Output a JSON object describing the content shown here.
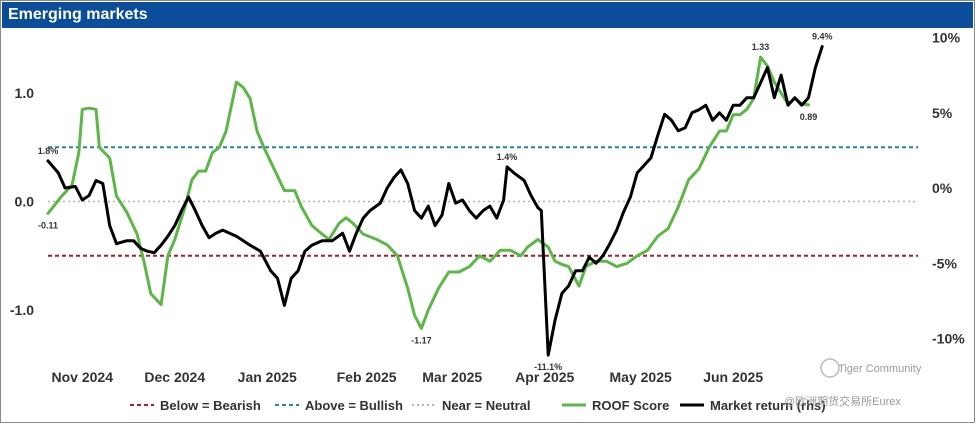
{
  "header": {
    "title": "Emerging markets"
  },
  "colors": {
    "header_bg": "#0b4d9b",
    "roof": "#5cb747",
    "market": "#000000",
    "bearish": "#b0192d",
    "bullish": "#1f7fc4",
    "neutral": "#b5b5b5"
  },
  "watermark": {
    "line1": "Tiger Community",
    "line2": "@欧洲期货交易所Eurex"
  },
  "chart_data": {
    "type": "line",
    "title": "Emerging markets",
    "left_axis": {
      "ylim": [
        -1.4,
        1.5
      ],
      "ticks": [
        1.0,
        0.0,
        -1.0
      ],
      "tick_labels": [
        "1.0",
        "0.0",
        "-1.0"
      ]
    },
    "right_axis": {
      "ylim": [
        -14.2,
        12.5
      ],
      "ticks": [
        10,
        5,
        0,
        -5,
        -10
      ],
      "tick_labels": [
        "10%",
        "5%",
        "0%",
        "-5%",
        "-10%"
      ]
    },
    "x_range": [
      0,
      256
    ],
    "x_ticks": [
      {
        "label": "Nov 2024",
        "x": 10
      },
      {
        "label": "Dec 2024",
        "x": 37
      },
      {
        "label": "Jan 2025",
        "x": 64
      },
      {
        "label": "Feb 2025",
        "x": 93
      },
      {
        "label": "Mar 2025",
        "x": 118
      },
      {
        "label": "Apr 2025",
        "x": 145
      },
      {
        "label": "May 2025",
        "x": 173
      },
      {
        "label": "Jun 2025",
        "x": 200
      }
    ],
    "reference_lines": [
      {
        "name": "Below = Bearish",
        "value": -0.5
      },
      {
        "name": "Above = Bullish",
        "value": 0.5
      },
      {
        "name": "Near = Neutral",
        "value": 0.0
      }
    ],
    "series": [
      {
        "name": "ROOF Score",
        "axis": "left",
        "points": [
          [
            0,
            -0.11
          ],
          [
            4,
            0.05
          ],
          [
            7,
            0.15
          ],
          [
            9,
            0.45
          ],
          [
            10,
            0.85
          ],
          [
            12,
            0.86
          ],
          [
            14,
            0.85
          ],
          [
            15,
            0.5
          ],
          [
            18,
            0.4
          ],
          [
            20,
            0.05
          ],
          [
            23,
            -0.1
          ],
          [
            26,
            -0.3
          ],
          [
            28,
            -0.55
          ],
          [
            30,
            -0.85
          ],
          [
            33,
            -0.95
          ],
          [
            35,
            -0.5
          ],
          [
            37,
            -0.35
          ],
          [
            40,
            -0.05
          ],
          [
            42,
            0.2
          ],
          [
            44,
            0.28
          ],
          [
            46,
            0.28
          ],
          [
            48,
            0.45
          ],
          [
            50,
            0.5
          ],
          [
            52,
            0.65
          ],
          [
            55,
            1.1
          ],
          [
            57,
            1.05
          ],
          [
            59,
            0.95
          ],
          [
            61,
            0.65
          ],
          [
            63,
            0.5
          ],
          [
            66,
            0.3
          ],
          [
            69,
            0.1
          ],
          [
            72,
            0.1
          ],
          [
            74,
            -0.05
          ],
          [
            77,
            -0.22
          ],
          [
            80,
            -0.3
          ],
          [
            82,
            -0.35
          ],
          [
            85,
            -0.2
          ],
          [
            87,
            -0.15
          ],
          [
            89,
            -0.2
          ],
          [
            92,
            -0.3
          ],
          [
            96,
            -0.35
          ],
          [
            99,
            -0.4
          ],
          [
            102,
            -0.5
          ],
          [
            105,
            -0.8
          ],
          [
            107,
            -1.05
          ],
          [
            109,
            -1.17
          ],
          [
            111,
            -1.0
          ],
          [
            114,
            -0.8
          ],
          [
            117,
            -0.65
          ],
          [
            120,
            -0.65
          ],
          [
            123,
            -0.6
          ],
          [
            126,
            -0.5
          ],
          [
            129,
            -0.55
          ],
          [
            132,
            -0.45
          ],
          [
            135,
            -0.45
          ],
          [
            138,
            -0.5
          ],
          [
            140,
            -0.42
          ],
          [
            143,
            -0.35
          ],
          [
            146,
            -0.42
          ],
          [
            148,
            -0.55
          ],
          [
            150,
            -0.58
          ],
          [
            152,
            -0.6
          ],
          [
            155,
            -0.78
          ],
          [
            157,
            -0.6
          ],
          [
            160,
            -0.55
          ],
          [
            163,
            -0.55
          ],
          [
            166,
            -0.6
          ],
          [
            169,
            -0.57
          ],
          [
            172,
            -0.5
          ],
          [
            175,
            -0.45
          ],
          [
            178,
            -0.32
          ],
          [
            181,
            -0.25
          ],
          [
            184,
            -0.05
          ],
          [
            187,
            0.2
          ],
          [
            190,
            0.3
          ],
          [
            193,
            0.5
          ],
          [
            196,
            0.65
          ],
          [
            198,
            0.65
          ],
          [
            200,
            0.8
          ],
          [
            202,
            0.8
          ],
          [
            204,
            0.85
          ],
          [
            206,
            0.95
          ],
          [
            208,
            1.33
          ],
          [
            210,
            1.25
          ],
          [
            212,
            1.1
          ],
          [
            214,
            1.0
          ],
          [
            216,
            0.9
          ],
          [
            218,
            0.95
          ],
          [
            220,
            0.9
          ],
          [
            222,
            0.89
          ]
        ]
      },
      {
        "name": "Market return (rhs)",
        "axis": "right",
        "points": [
          [
            0,
            1.8
          ],
          [
            3,
            1.0
          ],
          [
            5,
            0.0
          ],
          [
            8,
            0.1
          ],
          [
            10,
            -0.8
          ],
          [
            12,
            -0.5
          ],
          [
            14,
            0.5
          ],
          [
            16,
            0.3
          ],
          [
            18,
            -2.5
          ],
          [
            20,
            -3.7
          ],
          [
            23,
            -3.5
          ],
          [
            25,
            -3.5
          ],
          [
            27,
            -4.0
          ],
          [
            29,
            -4.2
          ],
          [
            31,
            -4.3
          ],
          [
            33,
            -3.8
          ],
          [
            35,
            -3.2
          ],
          [
            37,
            -2.5
          ],
          [
            39,
            -1.5
          ],
          [
            41,
            -0.6
          ],
          [
            43,
            -1.5
          ],
          [
            45,
            -2.5
          ],
          [
            47,
            -3.3
          ],
          [
            49,
            -3.0
          ],
          [
            51,
            -2.8
          ],
          [
            53,
            -3.0
          ],
          [
            55,
            -3.2
          ],
          [
            57,
            -3.5
          ],
          [
            59,
            -3.8
          ],
          [
            62,
            -4.2
          ],
          [
            65,
            -5.5
          ],
          [
            67,
            -6.0
          ],
          [
            69,
            -7.8
          ],
          [
            71,
            -6.0
          ],
          [
            73,
            -5.5
          ],
          [
            75,
            -4.2
          ],
          [
            77,
            -3.8
          ],
          [
            80,
            -3.5
          ],
          [
            83,
            -3.5
          ],
          [
            86,
            -3.0
          ],
          [
            88,
            -4.2
          ],
          [
            90,
            -3.0
          ],
          [
            92,
            -2.0
          ],
          [
            94,
            -1.5
          ],
          [
            97,
            -1.0
          ],
          [
            99,
            0.0
          ],
          [
            101,
            0.7
          ],
          [
            103,
            1.2
          ],
          [
            105,
            0.3
          ],
          [
            107,
            -1.5
          ],
          [
            109,
            -2.0
          ],
          [
            111,
            -1.2
          ],
          [
            113,
            -2.5
          ],
          [
            115,
            -1.8
          ],
          [
            117,
            0.3
          ],
          [
            119,
            -1.0
          ],
          [
            121,
            -0.8
          ],
          [
            123,
            -1.5
          ],
          [
            125,
            -2.0
          ],
          [
            127,
            -1.5
          ],
          [
            129,
            -1.2
          ],
          [
            131,
            -2.0
          ],
          [
            133,
            -0.8
          ],
          [
            134,
            1.4
          ],
          [
            136,
            1.0
          ],
          [
            139,
            0.5
          ],
          [
            141,
            -0.5
          ],
          [
            143,
            -1.3
          ],
          [
            144,
            -1.5
          ],
          [
            146,
            -11.1
          ],
          [
            148,
            -8.8
          ],
          [
            150,
            -7.0
          ],
          [
            152,
            -6.5
          ],
          [
            154,
            -5.5
          ],
          [
            156,
            -5.5
          ],
          [
            158,
            -4.6
          ],
          [
            160,
            -5.0
          ],
          [
            162,
            -4.5
          ],
          [
            164,
            -3.7
          ],
          [
            166,
            -2.8
          ],
          [
            168,
            -1.6
          ],
          [
            170,
            -0.6
          ],
          [
            172,
            1.0
          ],
          [
            174,
            1.5
          ],
          [
            176,
            2.0
          ],
          [
            178,
            3.5
          ],
          [
            180,
            4.9
          ],
          [
            182,
            4.5
          ],
          [
            184,
            3.8
          ],
          [
            186,
            4.0
          ],
          [
            188,
            5.0
          ],
          [
            190,
            5.2
          ],
          [
            192,
            5.5
          ],
          [
            194,
            4.5
          ],
          [
            196,
            5.0
          ],
          [
            198,
            4.5
          ],
          [
            200,
            5.5
          ],
          [
            202,
            5.5
          ],
          [
            204,
            6.0
          ],
          [
            206,
            6.0
          ],
          [
            208,
            7.0
          ],
          [
            210,
            8.0
          ],
          [
            212,
            6.0
          ],
          [
            214,
            7.5
          ],
          [
            216,
            5.5
          ],
          [
            218,
            6.0
          ],
          [
            220,
            5.5
          ],
          [
            222,
            6.0
          ],
          [
            224,
            8.0
          ],
          [
            226,
            9.4
          ]
        ]
      }
    ],
    "annotations": [
      {
        "label": "1.8%",
        "x": 0,
        "y": 1.8,
        "axis": "right",
        "pos": "above"
      },
      {
        "label": "-0.11",
        "x": 0,
        "y": -0.11,
        "axis": "left",
        "pos": "below"
      },
      {
        "label": "1.4%",
        "x": 134,
        "y": 1.4,
        "axis": "right",
        "pos": "above"
      },
      {
        "label": "-1.17",
        "x": 109,
        "y": -1.17,
        "axis": "left",
        "pos": "below"
      },
      {
        "label": "-11.1%",
        "x": 146,
        "y": -11.1,
        "axis": "right",
        "pos": "below"
      },
      {
        "label": "1.33",
        "x": 208,
        "y": 1.33,
        "axis": "left",
        "pos": "above"
      },
      {
        "label": "9.4%",
        "x": 226,
        "y": 9.4,
        "axis": "right",
        "pos": "above"
      },
      {
        "label": "0.89",
        "x": 222,
        "y": 0.89,
        "axis": "left",
        "pos": "below"
      }
    ],
    "legend": {
      "placement": "bottom",
      "items": [
        {
          "label": "Below = Bearish",
          "style": "dotted",
          "color": "#b0192d"
        },
        {
          "label": "Above = Bullish",
          "style": "dotted",
          "color": "#1f7fc4"
        },
        {
          "label": "Near = Neutral",
          "style": "dotted",
          "color": "#b5b5b5"
        },
        {
          "label": "ROOF Score",
          "style": "solid",
          "color": "#5cb747"
        },
        {
          "label": "Market return (rhs)",
          "style": "solid",
          "color": "#000000"
        }
      ]
    }
  }
}
